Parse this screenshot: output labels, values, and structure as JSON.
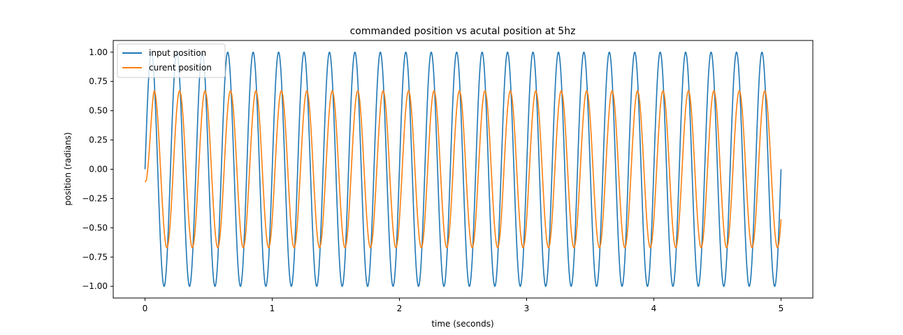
{
  "chart_data": {
    "type": "line",
    "title": "commanded position vs acutal position at 5hz",
    "xlabel": "time (seconds)",
    "ylabel": "position (radians)",
    "xlim": [
      -0.25,
      5.25
    ],
    "ylim": [
      -1.1,
      1.1
    ],
    "x_ticks": [
      0,
      1,
      2,
      3,
      4,
      5
    ],
    "x_tick_labels": [
      "0",
      "1",
      "2",
      "3",
      "4",
      "5"
    ],
    "y_ticks": [
      -1.0,
      -0.75,
      -0.5,
      -0.25,
      0.0,
      0.25,
      0.5,
      0.75,
      1.0
    ],
    "y_tick_labels": [
      "−1.00",
      "−0.75",
      "−0.50",
      "−0.25",
      "0.00",
      "0.25",
      "0.50",
      "0.75",
      "1.00"
    ],
    "grid": false,
    "legend_position": "top-left",
    "series": [
      {
        "name": "input position",
        "color": "#1f77b4",
        "frequency_hz": 5,
        "amplitude": 1.0,
        "t_start": 0.0,
        "t_end": 5.0,
        "start_value": 0.0,
        "end_value": -0.1
      },
      {
        "name": "curent position",
        "color": "#ff7f0e",
        "frequency_hz": 5,
        "amplitude": 0.67,
        "t_start": 0.0,
        "t_end": 5.0,
        "start_value": -0.11,
        "end_value": -0.62
      }
    ]
  }
}
